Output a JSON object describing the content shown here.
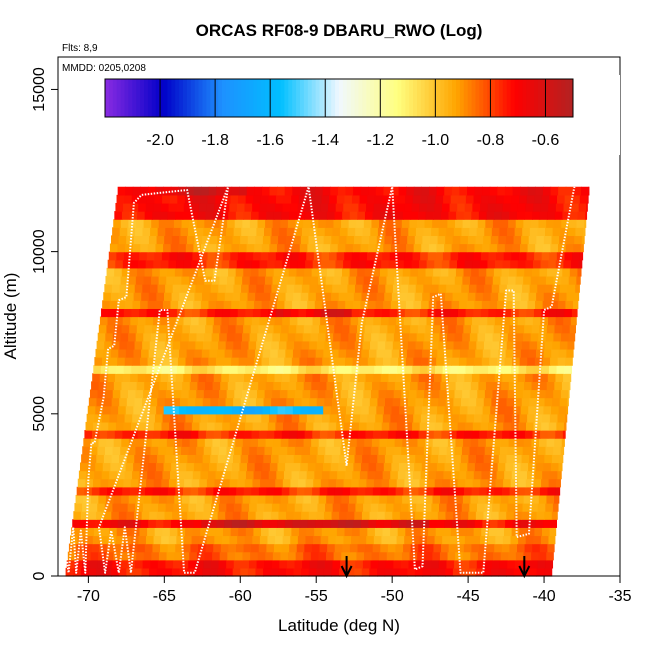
{
  "chart_data": {
    "type": "heatmap",
    "title": "ORCAS RF08-9 DBARU_RWO (Log)",
    "annotations": {
      "flights": "Flts: 8,9",
      "dates": "MMDD: 0205,0208"
    },
    "xlabel": "Latitude (deg N)",
    "ylabel": "Altitude (m)",
    "xlim": [
      -72,
      -35
    ],
    "ylim": [
      0,
      16000
    ],
    "x_ticks": [
      -70,
      -65,
      -60,
      -55,
      -50,
      -45,
      -40,
      -35
    ],
    "x_tick_labels": [
      "-70",
      "-65",
      "-60",
      "-55",
      "-50",
      "-45",
      "-40",
      "-35"
    ],
    "y_ticks": [
      0,
      5000,
      10000,
      15000
    ],
    "y_tick_labels": [
      "0",
      "5000",
      "10000",
      "15000"
    ],
    "colorbar": {
      "range": [
        -2.2,
        -0.5
      ],
      "ticks": [
        -2.0,
        -1.8,
        -1.6,
        -1.4,
        -1.2,
        -1.0,
        -0.8,
        -0.6
      ],
      "tick_labels": [
        "-2.0",
        "-1.8",
        "-1.6",
        "-1.4",
        "-1.2",
        "-1.0",
        "-0.8",
        "-0.6"
      ],
      "colors": [
        "#8a2be2",
        "#0000c8",
        "#1e90ff",
        "#00bfff",
        "#f0f8ff",
        "#ffff80",
        "#ffa500",
        "#ff0000",
        "#b22222"
      ]
    },
    "data_extent": {
      "bottom_lat_range": [
        -71.5,
        -39.5
      ],
      "top_lat_range": [
        -68.0,
        -37.0
      ],
      "top_altitude": 12000,
      "cell_lat": 0.5,
      "cell_alt": 250
    },
    "bands": [
      {
        "alt_min": 0,
        "alt_max": 400,
        "value": -0.72
      },
      {
        "alt_min": 400,
        "alt_max": 1000,
        "value": -0.85
      },
      {
        "alt_min": 1500,
        "alt_max": 1750,
        "value": -0.7
      },
      {
        "alt_min": 2500,
        "alt_max": 2750,
        "value": -0.75
      },
      {
        "alt_min": 4250,
        "alt_max": 4500,
        "value": -0.75
      },
      {
        "alt_min": 6250,
        "alt_max": 6500,
        "value": -1.1
      },
      {
        "alt_min": 7900,
        "alt_max": 8150,
        "value": -0.75
      },
      {
        "alt_min": 9500,
        "alt_max": 10000,
        "value": -0.75
      },
      {
        "alt_min": 11000,
        "alt_max": 12000,
        "value": -0.7
      }
    ],
    "features": [
      {
        "lat_min": -65.5,
        "lat_max": -55.0,
        "alt_min": 5000,
        "alt_max": 5250,
        "value": -1.6,
        "note": "low-value streak"
      },
      {
        "lat_min": -63.0,
        "lat_max": -48.0,
        "alt_min": 1500,
        "alt_max": 1750,
        "value": -0.6,
        "note": "high-value streak"
      },
      {
        "lat_min": -66.0,
        "lat_max": -60.0,
        "alt_min": 11750,
        "alt_max": 12000,
        "value": -0.6,
        "note": "high-value streak"
      },
      {
        "lat_min": -58.0,
        "lat_max": -53.0,
        "alt_min": 7900,
        "alt_max": 8150,
        "value": -0.65,
        "note": "high-value streak"
      }
    ],
    "flight_track": [
      [
        -71.5,
        800
      ],
      [
        -71.3,
        100
      ],
      [
        -71.0,
        1500
      ],
      [
        -70.8,
        100
      ],
      [
        -70.5,
        1400
      ],
      [
        -70.2,
        100
      ],
      [
        -70.0,
        3000
      ],
      [
        -69.8,
        4100
      ],
      [
        -69.6,
        4100
      ],
      [
        -69.0,
        5500
      ],
      [
        -68.7,
        7000
      ],
      [
        -68.3,
        7100
      ],
      [
        -68.0,
        8500
      ],
      [
        -67.5,
        8600
      ],
      [
        -67.0,
        11500
      ],
      [
        -66.5,
        11750
      ],
      [
        -65.5,
        11800
      ],
      [
        -63.5,
        11900
      ],
      [
        -62.3,
        9100
      ],
      [
        -61.7,
        9100
      ],
      [
        -60.8,
        12000
      ],
      [
        -69.3,
        1500
      ],
      [
        -68.9,
        100
      ],
      [
        -68.5,
        1400
      ],
      [
        -68.0,
        100
      ],
      [
        -67.6,
        1500
      ],
      [
        -67.2,
        100
      ],
      [
        -65.3,
        8200
      ],
      [
        -64.8,
        8200
      ],
      [
        -63.7,
        100
      ],
      [
        -63.0,
        100
      ],
      [
        -55.5,
        12000
      ],
      [
        -53.0,
        3400
      ],
      [
        -52.0,
        7800
      ],
      [
        -50.0,
        12000
      ],
      [
        -48.5,
        200
      ],
      [
        -48.0,
        300
      ],
      [
        -47.3,
        8600
      ],
      [
        -46.8,
        8700
      ],
      [
        -45.5,
        100
      ],
      [
        -44.0,
        100
      ],
      [
        -42.5,
        8800
      ],
      [
        -42.0,
        8800
      ],
      [
        -41.8,
        1200
      ],
      [
        -41.0,
        1300
      ],
      [
        -40.0,
        8200
      ],
      [
        -39.5,
        8300
      ],
      [
        -38.0,
        12000
      ]
    ],
    "markers": [
      {
        "lat": -53.0,
        "label": "down-arrow"
      },
      {
        "lat": -41.3,
        "label": "down-arrow"
      }
    ]
  }
}
